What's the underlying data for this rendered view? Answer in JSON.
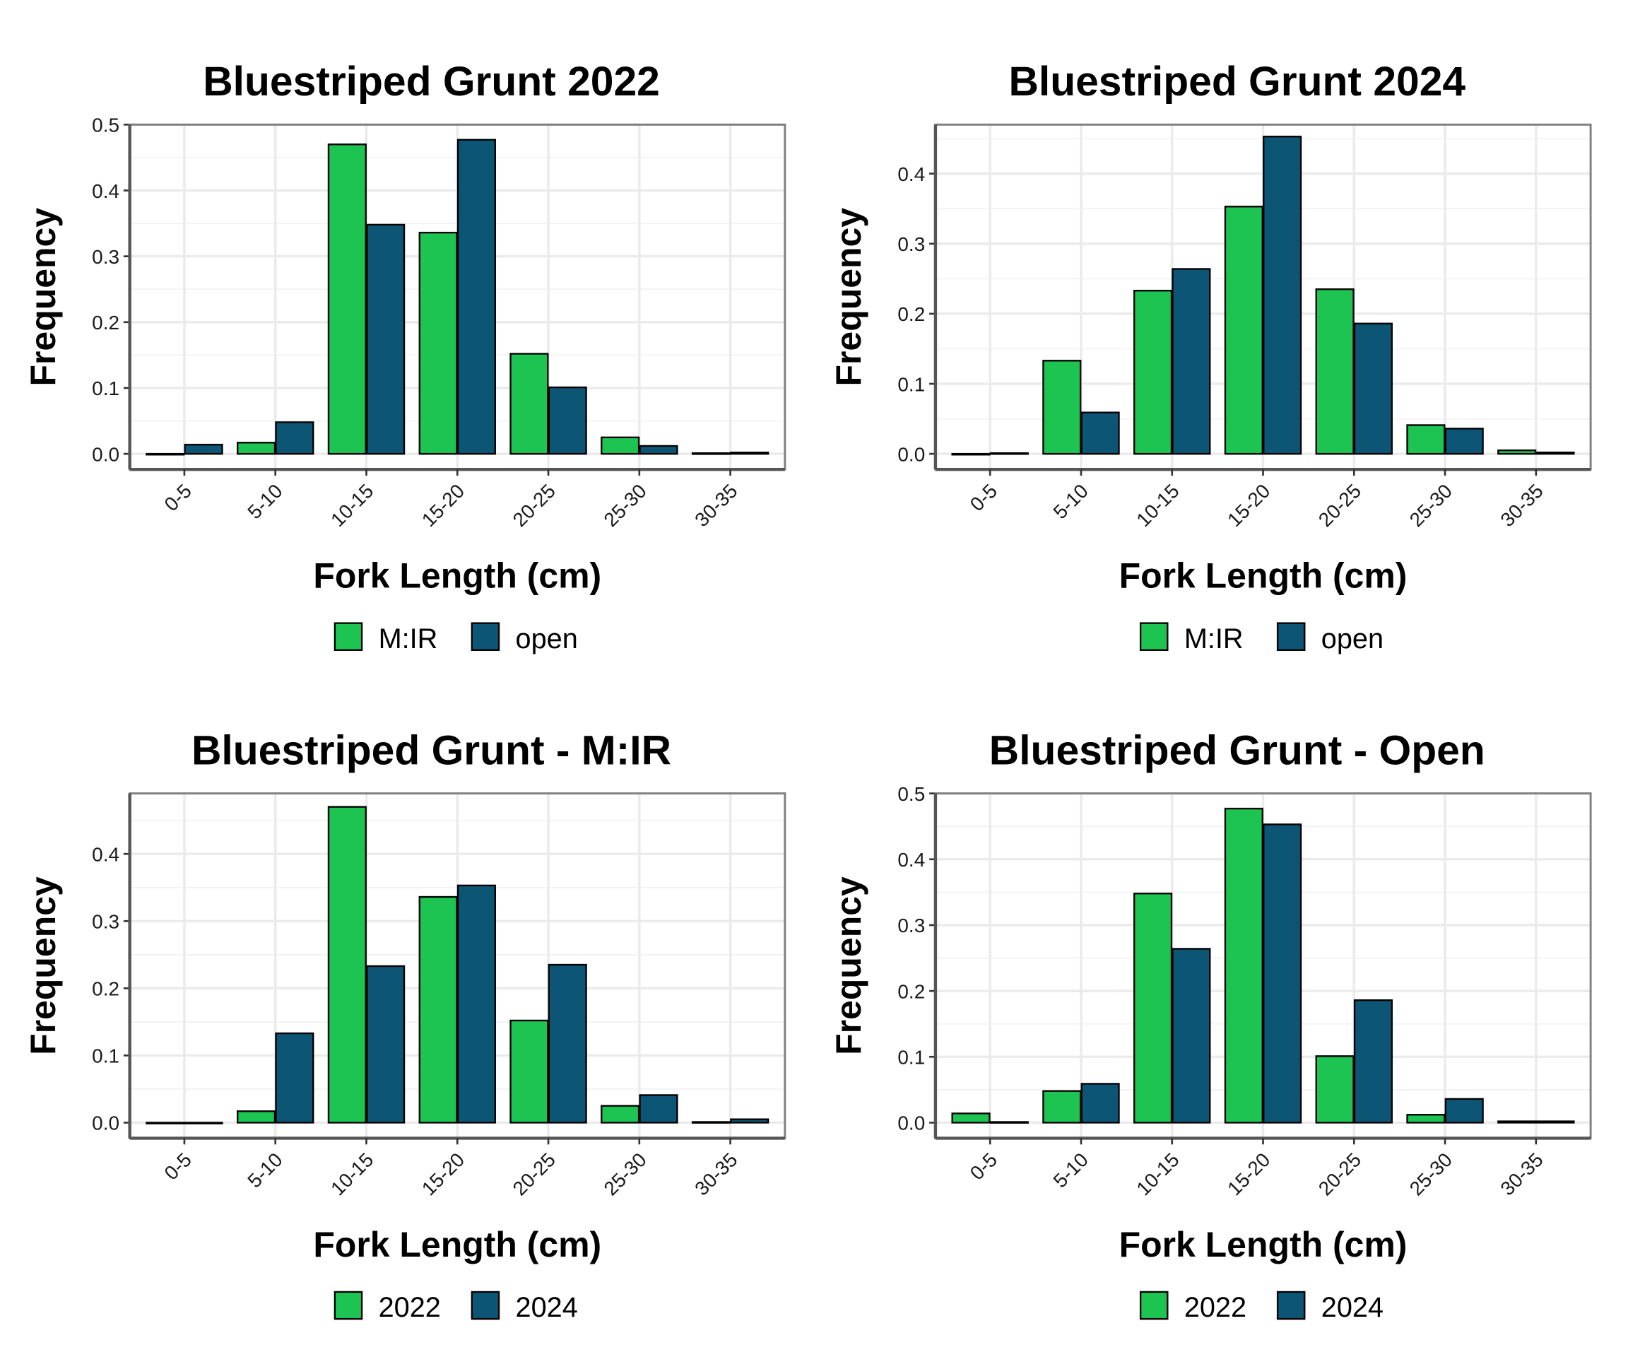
{
  "colors": {
    "green": "#1dc451",
    "blue": "#0d5575",
    "bar_outline": "#000000",
    "grid": "#ebebeb",
    "panel_border": "#7f7f7f"
  },
  "chart_data": [
    {
      "type": "bar",
      "title": "Bluestriped Grunt 2022",
      "xlabel": "Fork Length (cm)",
      "ylabel": "Frequency",
      "categories": [
        "0-5",
        "5-10",
        "10-15",
        "15-20",
        "20-25",
        "25-30",
        "30-35"
      ],
      "ylim": [
        0,
        0.5
      ],
      "yticks": [
        "0.0",
        "0.1",
        "0.2",
        "0.3",
        "0.4",
        "0.5"
      ],
      "grid": true,
      "legend_position": "bottom",
      "series": [
        {
          "name": "M:IR",
          "color": "#1dc451",
          "values": [
            0.0,
            0.017,
            0.47,
            0.336,
            0.152,
            0.025,
            0.001
          ]
        },
        {
          "name": "open",
          "color": "#0d5575",
          "values": [
            0.014,
            0.048,
            0.348,
            0.477,
            0.101,
            0.012,
            0.002
          ]
        }
      ]
    },
    {
      "type": "bar",
      "title": "Bluestriped Grunt 2024",
      "xlabel": "Fork Length (cm)",
      "ylabel": "Frequency",
      "categories": [
        "0-5",
        "5-10",
        "10-15",
        "15-20",
        "20-25",
        "25-30",
        "30-35"
      ],
      "ylim": [
        0,
        0.47
      ],
      "yticks": [
        "0.0",
        "0.1",
        "0.2",
        "0.3",
        "0.4"
      ],
      "grid": true,
      "legend_position": "bottom",
      "series": [
        {
          "name": "M:IR",
          "color": "#1dc451",
          "values": [
            0.0,
            0.133,
            0.233,
            0.353,
            0.235,
            0.041,
            0.005
          ]
        },
        {
          "name": "open",
          "color": "#0d5575",
          "values": [
            0.001,
            0.059,
            0.264,
            0.453,
            0.186,
            0.036,
            0.002
          ]
        }
      ]
    },
    {
      "type": "bar",
      "title": "Bluestriped Grunt - M:IR",
      "xlabel": "Fork Length (cm)",
      "ylabel": "Frequency",
      "categories": [
        "0-5",
        "5-10",
        "10-15",
        "15-20",
        "20-25",
        "25-30",
        "30-35"
      ],
      "ylim": [
        0,
        0.49
      ],
      "yticks": [
        "0.0",
        "0.1",
        "0.2",
        "0.3",
        "0.4"
      ],
      "grid": true,
      "legend_position": "bottom",
      "series": [
        {
          "name": "2022",
          "color": "#1dc451",
          "values": [
            0.0,
            0.017,
            0.47,
            0.336,
            0.152,
            0.025,
            0.001
          ]
        },
        {
          "name": "2024",
          "color": "#0d5575",
          "values": [
            0.0,
            0.133,
            0.233,
            0.353,
            0.235,
            0.041,
            0.005
          ]
        }
      ]
    },
    {
      "type": "bar",
      "title": "Bluestriped Grunt - Open",
      "xlabel": "Fork Length (cm)",
      "ylabel": "Frequency",
      "categories": [
        "0-5",
        "5-10",
        "10-15",
        "15-20",
        "20-25",
        "25-30",
        "30-35"
      ],
      "ylim": [
        0,
        0.5
      ],
      "yticks": [
        "0.0",
        "0.1",
        "0.2",
        "0.3",
        "0.4",
        "0.5"
      ],
      "grid": true,
      "legend_position": "bottom",
      "series": [
        {
          "name": "2022",
          "color": "#1dc451",
          "values": [
            0.014,
            0.048,
            0.348,
            0.477,
            0.101,
            0.012,
            0.002
          ]
        },
        {
          "name": "2024",
          "color": "#0d5575",
          "values": [
            0.001,
            0.059,
            0.264,
            0.453,
            0.186,
            0.036,
            0.002
          ]
        }
      ]
    }
  ]
}
